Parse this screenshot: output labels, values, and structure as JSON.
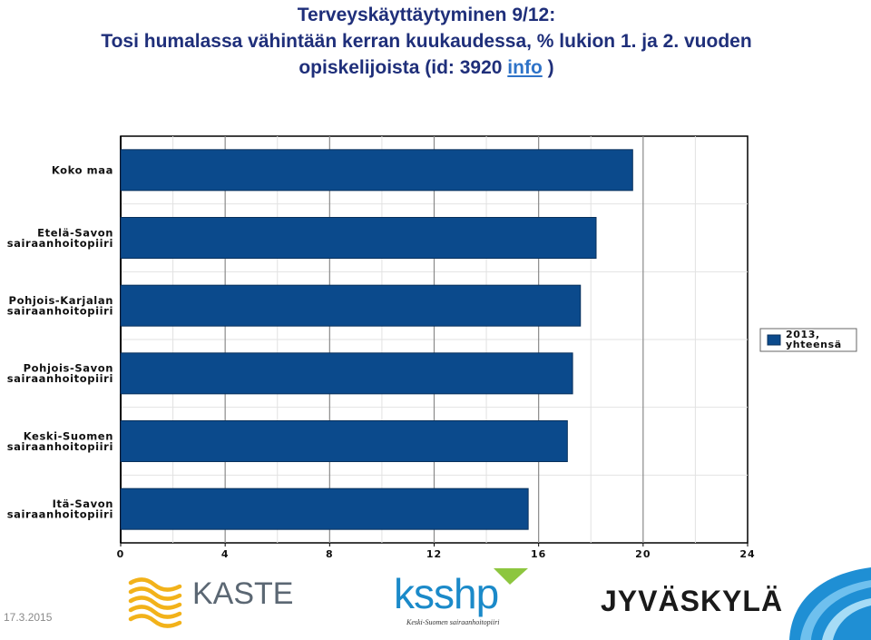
{
  "title": {
    "line1": "Terveyskäyttäytyminen 9/12:",
    "line2": "Tosi humalassa vähintään kerran kuukaudessa, % lukion 1. ja 2. vuoden",
    "line3_prefix": "opiskelijoista (id: 3920",
    "link_text": "info",
    "line3_suffix": ")"
  },
  "chart_data": {
    "type": "bar",
    "orientation": "horizontal",
    "categories": [
      [
        "Koko maa"
      ],
      [
        "Etelä-Savon",
        "sairaanhoitopiiri"
      ],
      [
        "Pohjois-Karjalan",
        "sairaanhoitopiiri"
      ],
      [
        "Pohjois-Savon",
        "sairaanhoitopiiri"
      ],
      [
        "Keski-Suomen",
        "sairaanhoitopiiri"
      ],
      [
        "Itä-Savon",
        "sairaanhoitopiiri"
      ]
    ],
    "series": [
      {
        "name": "2013, yhteensä",
        "legend_lines": [
          "2013,",
          "yhteensä"
        ],
        "color": "#0b4a8c",
        "values": [
          19.6,
          18.2,
          17.6,
          17.3,
          17.1,
          15.6
        ]
      }
    ],
    "xlim": [
      0,
      24
    ],
    "xticks": [
      "0",
      "4",
      "8",
      "12",
      "16",
      "20",
      "24"
    ],
    "grid": true,
    "legend_position": "right"
  },
  "footer": {
    "date": "17.3.2015",
    "logos": {
      "kaste": "KASTE",
      "ksshp": "ksshp",
      "ksshp_subtitle": "Keski-Suomen sairaanhoitopiiri",
      "jyvaskyla": "JYVÄSKYLÄ"
    }
  }
}
